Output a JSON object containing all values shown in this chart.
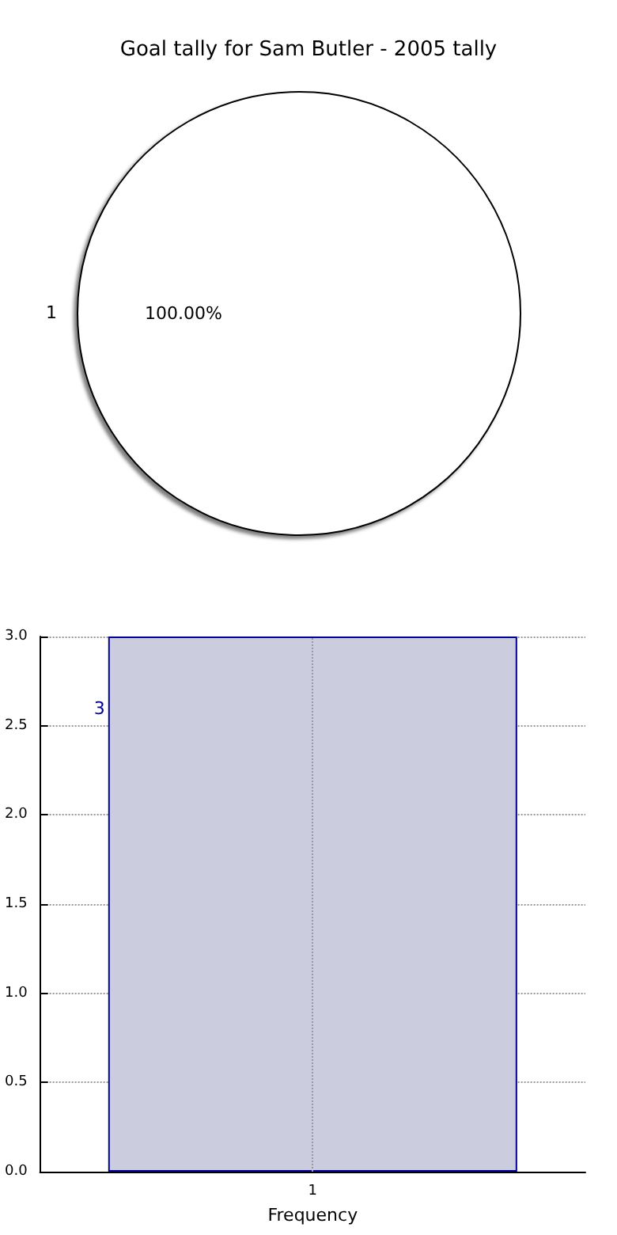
{
  "chart_data": [
    {
      "type": "pie",
      "title": "Goal tally for Sam Butler - 2005 tally",
      "categories": [
        "1"
      ],
      "values": [
        100
      ],
      "colors": [
        "#ffffff"
      ],
      "value_labels": [
        "100.00%"
      ]
    },
    {
      "type": "bar",
      "xlabel": "Frequency",
      "categories": [
        "1"
      ],
      "values": [
        3
      ],
      "color": "#ccccdf",
      "data_labels": true,
      "grid": true,
      "ylim": [
        0,
        3
      ],
      "yticks": [
        {
          "value": 0,
          "label": "0.0"
        },
        {
          "value": 0.5,
          "label": "0.5"
        },
        {
          "value": 1,
          "label": "1.0"
        },
        {
          "value": 1.5,
          "label": "1.5"
        },
        {
          "value": 2,
          "label": "2.0"
        },
        {
          "value": 2.5,
          "label": "2.5"
        },
        {
          "value": 3,
          "label": "3.0"
        }
      ]
    }
  ]
}
